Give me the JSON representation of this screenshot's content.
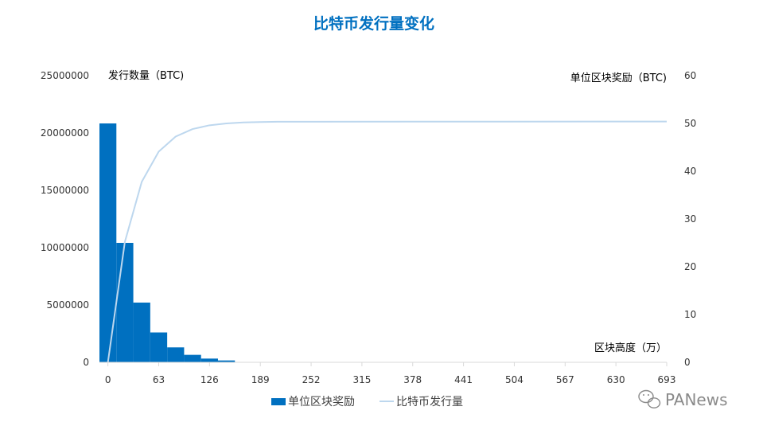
{
  "chart_data": {
    "type": "bar",
    "title": "比特币发行量变化",
    "ylabel": "发行数量（BTC)",
    "y2label": "单位区块奖励（BTC)",
    "xlabel": "区块高度（万）",
    "x_tick_labels": [
      "0",
      "63",
      "126",
      "189",
      "252",
      "315",
      "378",
      "441",
      "504",
      "567",
      "630",
      "693"
    ],
    "y_tick_labels": [
      "0",
      "5000000",
      "10000000",
      "15000000",
      "20000000",
      "25000000"
    ],
    "y2_tick_labels": [
      "0",
      "10",
      "20",
      "30",
      "40",
      "50",
      "60"
    ],
    "xlim": [
      -10.5,
      693
    ],
    "ylim": [
      0,
      25000000
    ],
    "y2lim": [
      0,
      60
    ],
    "grid": false,
    "legend_position": "bottom",
    "series": [
      {
        "name": "单位区块奖励",
        "type": "bar",
        "axis": "right",
        "color": "#0070C0",
        "bin_width": 21,
        "x": [
          0,
          21,
          42,
          63,
          84,
          105,
          126,
          147
        ],
        "values": [
          50,
          25,
          12.5,
          6.25,
          3.125,
          1.5625,
          0.78125,
          0.390625
        ]
      },
      {
        "name": "比特币发行量",
        "type": "line",
        "axis": "left",
        "color": "#BDD7EE",
        "x": [
          0,
          21,
          42,
          63,
          84,
          105,
          126,
          147,
          168,
          189,
          210,
          693
        ],
        "values": [
          0,
          10500000,
          15750000,
          18375000,
          19687500,
          20343750,
          20671875,
          20835937,
          20917968,
          20958984,
          20979492,
          21000000
        ]
      }
    ]
  },
  "legend": {
    "bar_label": "单位区块奖励",
    "line_label": "比特币发行量"
  },
  "colors": {
    "title": "#0070C0",
    "bar": "#0070C0",
    "line": "#BDD7EE",
    "axis": "#D9D9D9"
  },
  "watermark": {
    "icon": "wechat-icon",
    "text": "PANews"
  }
}
